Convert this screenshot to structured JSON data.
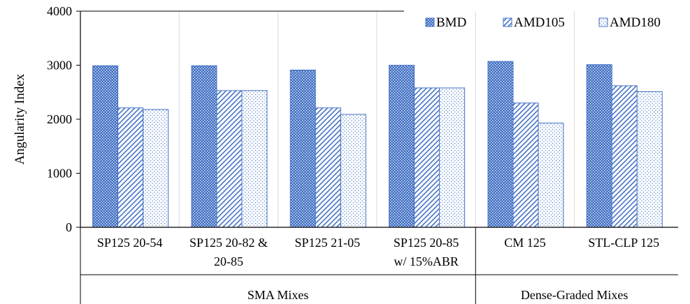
{
  "chart_data": {
    "type": "bar",
    "ylabel": "Angularity Index",
    "ylim": [
      0,
      4000
    ],
    "yticks": [
      0,
      1000,
      2000,
      3000,
      4000
    ],
    "grid": "vertical separators between categories",
    "legend_position": "top-right",
    "categories": [
      [
        "SP125 20-54"
      ],
      [
        "SP125 20-82 &",
        "20-85"
      ],
      [
        "SP125 21-05"
      ],
      [
        "SP125 20-85",
        "w/ 15%ABR"
      ],
      [
        "CM 125"
      ],
      [
        "STL-CLP 125"
      ]
    ],
    "groups": [
      {
        "label": "SMA Mixes",
        "count": 4
      },
      {
        "label": "Dense-Graded Mixes",
        "count": 2
      }
    ],
    "series": [
      {
        "name": "BMD",
        "color": "#4472C4",
        "pattern": "dots",
        "values": [
          2990,
          2990,
          2910,
          3000,
          3070,
          3010
        ]
      },
      {
        "name": "AMD105",
        "color": "#4472C4",
        "pattern": "diagonal",
        "values": [
          2210,
          2530,
          2210,
          2580,
          2300,
          2620
        ]
      },
      {
        "name": "AMD180",
        "color": "#4472C4",
        "pattern": "sparse",
        "values": [
          2180,
          2530,
          2090,
          2580,
          1930,
          2510
        ]
      }
    ]
  }
}
